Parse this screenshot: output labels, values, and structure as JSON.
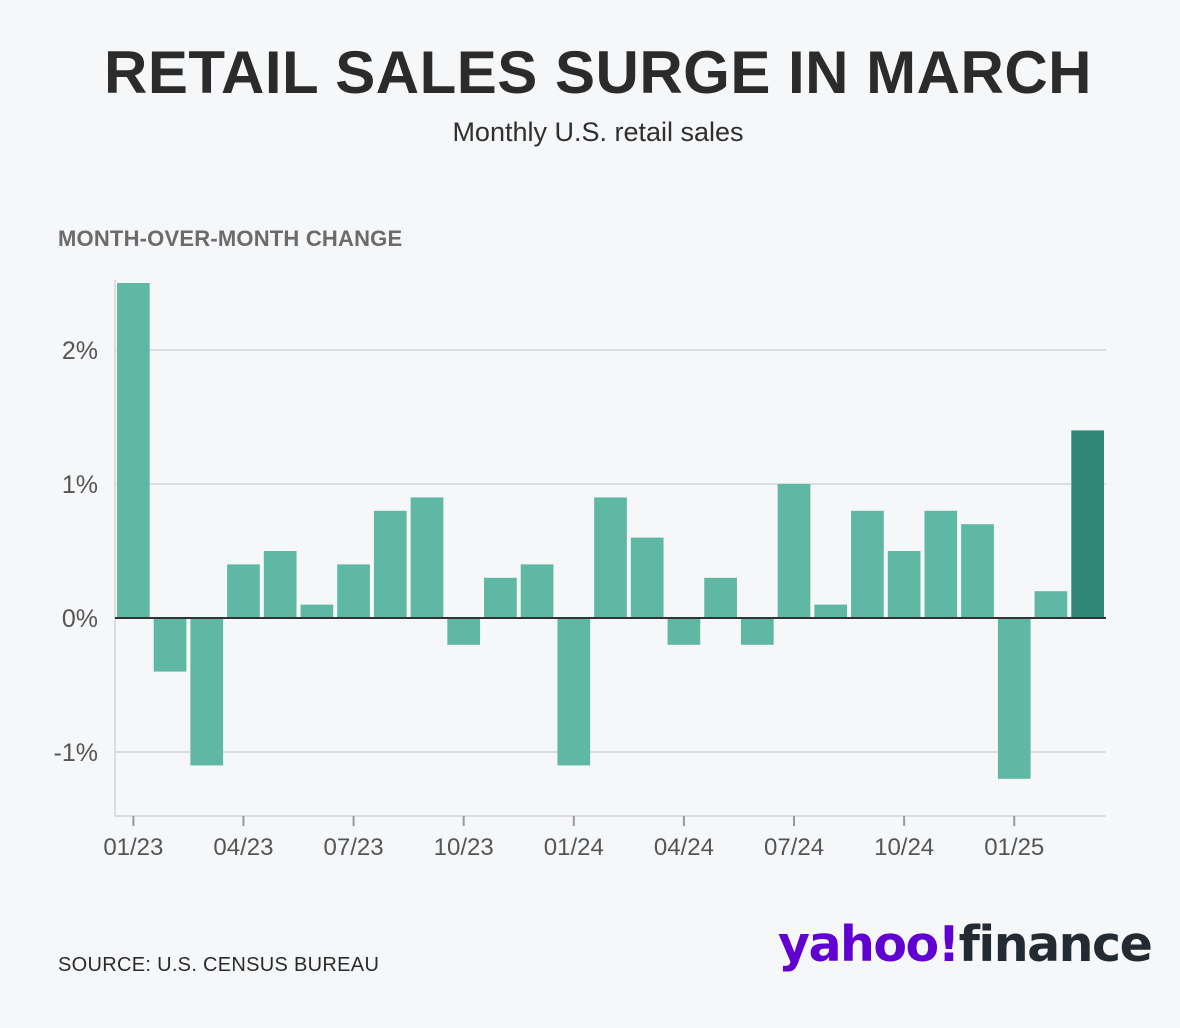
{
  "header": {
    "title": "RETAIL SALES SURGE IN MARCH",
    "subtitle": "Monthly U.S. retail sales"
  },
  "footer": {
    "source": "SOURCE: U.S. CENSUS BUREAU",
    "logo_part1": "yahoo!",
    "logo_part2": "finance"
  },
  "colors": {
    "bar": "#5fb8a3",
    "bar_highlight": "#2e8875",
    "grid": "#dcdde0",
    "axis": "#333333",
    "logo_purple": "#6001d2"
  },
  "chart_data": {
    "type": "bar",
    "title": "RETAIL SALES SURGE IN MARCH",
    "subtitle": "Monthly U.S. retail sales",
    "ylabel": "MONTH-OVER-MONTH CHANGE",
    "xlabel": "",
    "categories": [
      "01/23",
      "02/23",
      "03/23",
      "04/23",
      "05/23",
      "06/23",
      "07/23",
      "08/23",
      "09/23",
      "10/23",
      "11/23",
      "12/23",
      "01/24",
      "02/24",
      "03/24",
      "04/24",
      "05/24",
      "06/24",
      "07/24",
      "08/24",
      "09/24",
      "10/24",
      "11/24",
      "12/24",
      "01/25",
      "02/25",
      "03/25"
    ],
    "values": [
      2.5,
      -0.4,
      -1.1,
      0.4,
      0.5,
      0.1,
      0.4,
      0.8,
      0.9,
      -0.2,
      0.3,
      0.4,
      -1.1,
      0.9,
      0.6,
      -0.2,
      0.3,
      -0.2,
      1.0,
      0.1,
      0.8,
      0.5,
      0.8,
      0.7,
      -1.2,
      0.2,
      1.4
    ],
    "highlight_index": 26,
    "x_tick_labels": [
      "01/23",
      "04/23",
      "07/23",
      "10/23",
      "01/24",
      "04/24",
      "07/24",
      "10/24",
      "01/25"
    ],
    "x_tick_every": 3,
    "y_ticks": [
      -1,
      0,
      1,
      2
    ],
    "y_tick_labels": [
      "-1%",
      "0%",
      "1%",
      "2%"
    ],
    "ylim": [
      -1.5,
      2.55
    ],
    "grid": true,
    "legend": "none"
  }
}
